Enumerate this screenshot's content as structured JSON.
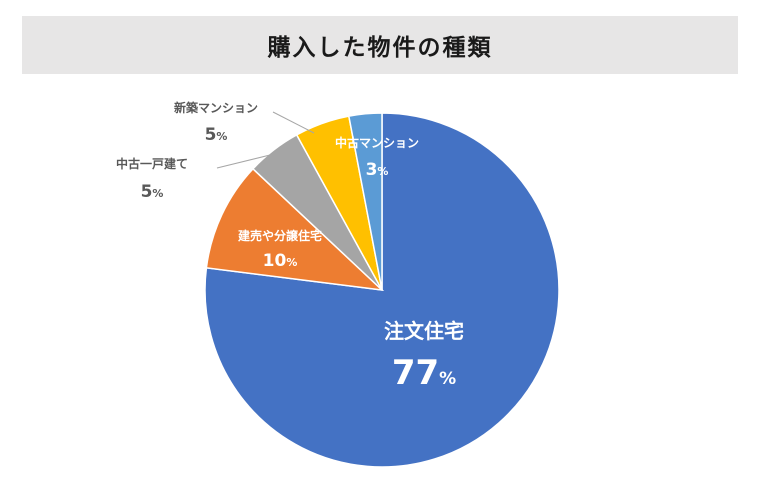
{
  "chart_data": {
    "type": "pie",
    "title": "購入した物件の種類",
    "start_angle_deg": 0,
    "direction": "clockwise",
    "slices": [
      {
        "label": "注文住宅",
        "value": 77,
        "unit": "%",
        "color": "#4472c4",
        "label_color": "#ffffff",
        "label_position": "inside"
      },
      {
        "label": "建売や分譲住宅",
        "value": 10,
        "unit": "%",
        "color": "#ed7d31",
        "label_color": "#ffffff",
        "label_position": "inside"
      },
      {
        "label": "中古一戸建て",
        "value": 5,
        "unit": "%",
        "color": "#a5a5a5",
        "label_color": "#595959",
        "label_position": "outside"
      },
      {
        "label": "新築マンション",
        "value": 5,
        "unit": "%",
        "color": "#ffc000",
        "label_color": "#595959",
        "label_position": "outside"
      },
      {
        "label": "中古マンション",
        "value": 3,
        "unit": "%",
        "color": "#5b9bd5",
        "label_color": "#ffffff",
        "label_position": "inside"
      }
    ]
  }
}
